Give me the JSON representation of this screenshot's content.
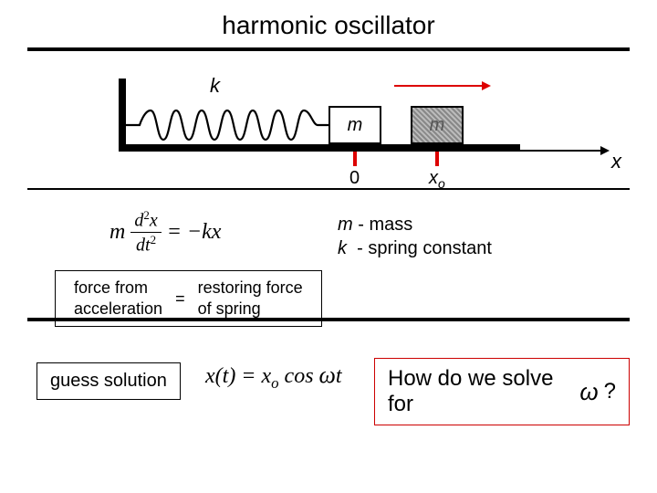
{
  "title": "harmonic oscillator",
  "diagram": {
    "k_label": "k",
    "mass_label": "m",
    "tick0": "0",
    "tick_xo_html": "x<sub>o</sub>",
    "x_axis": "x",
    "spring": {
      "coils": 10,
      "color": "#000000",
      "stroke": 2
    },
    "wall_color": "#000000",
    "floor_color": "#000000",
    "tick_color": "#d00000",
    "motion_arrow_color": "#d00000",
    "axis_arrow_color": "#000000"
  },
  "equation": {
    "lhs_m": "m",
    "frac_num_html": "d<span class='sup'>2</span>x",
    "frac_den_html": "dt<span class='sup'>2</span>",
    "rhs_html": "= −kx"
  },
  "legend": {
    "line1_html": "<i>m</i> - mass",
    "line2_html": "<i>k</i>&nbsp; - spring constant"
  },
  "force_box": {
    "col1_line1": "force from",
    "col1_line2": "acceleration",
    "eq": "=",
    "col2_line1": "restoring force",
    "col2_line2": "of spring"
  },
  "guess_label": "guess solution",
  "xt_equation_html": "x(t) = x<sub>o</sub> cos <span class='omega'>ω</span>t",
  "solve": {
    "text": "How do we solve for",
    "omega": "ω",
    "q": "?",
    "border_color": "#cc0000"
  },
  "colors": {
    "bg": "#ffffff",
    "text": "#000000"
  }
}
